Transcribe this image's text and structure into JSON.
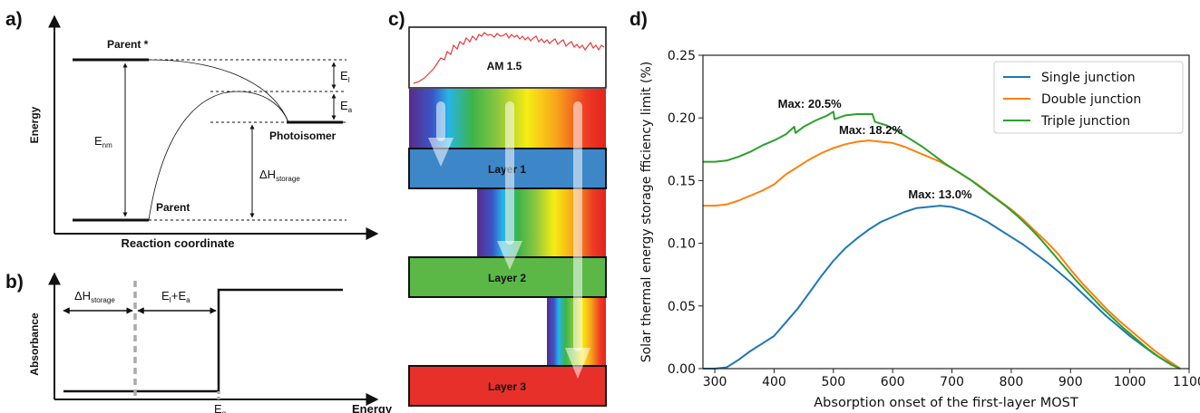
{
  "panel_a": {
    "letter": "a)",
    "y_axis_label": "Energy",
    "x_axis_label": "Reaction coordinate",
    "parent_star_label": "Parent *",
    "parent_label": "Parent",
    "photoisomer_label": "Photoisomer",
    "e_nm_label": "E",
    "e_nm_sub": "nm",
    "e_i_label": "E",
    "e_i_sub": "I",
    "e_a_label": "E",
    "e_a_sub": "a",
    "dh_label": "ΔH",
    "dh_sub": "storage"
  },
  "panel_b": {
    "letter": "b)",
    "y_axis_label": "Absorbance",
    "x_axis_label": "Energy",
    "dh_label": "ΔH",
    "dh_sub": "storage",
    "eiea_label": "E",
    "eiea_sub1": "I",
    "eiea_mid": "+E",
    "eiea_sub2": "a",
    "eg_label": "E",
    "eg_sub": "g"
  },
  "panel_c": {
    "letter": "c)",
    "spectrum_label": "AM 1.5",
    "layers": [
      "Layer 1",
      "Layer 2",
      "Layer 3"
    ],
    "layer_colors": [
      "#3d87c9",
      "#5bb847",
      "#e8302a"
    ]
  },
  "panel_d": {
    "letter": "d)",
    "chart_data": {
      "type": "line",
      "xlabel": "Absorption onset of the first-layer MOST",
      "ylabel": "Solar thermal energy storage fficiency limit (%)",
      "xlim": [
        280,
        1100
      ],
      "ylim": [
        0,
        0.25
      ],
      "xticks": [
        300,
        400,
        500,
        600,
        700,
        800,
        900,
        1000,
        1100
      ],
      "yticks": [
        0.0,
        0.05,
        0.1,
        0.15,
        0.2,
        0.25
      ],
      "legend": "top-right",
      "series": [
        {
          "name": "Single junction",
          "color": "#1f77b4",
          "x": [
            280,
            300,
            320,
            340,
            360,
            380,
            400,
            420,
            440,
            460,
            480,
            500,
            520,
            540,
            560,
            580,
            600,
            620,
            640,
            660,
            680,
            700,
            720,
            740,
            760,
            780,
            800,
            820,
            840,
            860,
            880,
            900,
            920,
            940,
            960,
            980,
            1000,
            1020,
            1040,
            1060,
            1085
          ],
          "y": [
            0.0,
            0.0,
            0.001,
            0.007,
            0.014,
            0.02,
            0.026,
            0.037,
            0.048,
            0.061,
            0.074,
            0.086,
            0.096,
            0.104,
            0.111,
            0.117,
            0.121,
            0.125,
            0.128,
            0.129,
            0.13,
            0.129,
            0.126,
            0.122,
            0.117,
            0.111,
            0.105,
            0.099,
            0.092,
            0.085,
            0.077,
            0.069,
            0.06,
            0.051,
            0.042,
            0.034,
            0.026,
            0.019,
            0.012,
            0.006,
            0.0
          ]
        },
        {
          "name": "Double junction",
          "color": "#ff7f0e",
          "x": [
            280,
            300,
            320,
            340,
            360,
            380,
            400,
            420,
            440,
            460,
            480,
            500,
            520,
            540,
            560,
            580,
            600,
            620,
            640,
            660,
            680,
            700,
            720,
            740,
            760,
            780,
            800,
            820,
            840,
            860,
            880,
            900,
            920,
            940,
            960,
            980,
            1000,
            1020,
            1040,
            1060,
            1085
          ],
          "y": [
            0.13,
            0.13,
            0.131,
            0.134,
            0.138,
            0.142,
            0.147,
            0.155,
            0.161,
            0.167,
            0.172,
            0.176,
            0.179,
            0.181,
            0.182,
            0.181,
            0.18,
            0.177,
            0.173,
            0.169,
            0.165,
            0.16,
            0.154,
            0.148,
            0.141,
            0.134,
            0.127,
            0.119,
            0.11,
            0.101,
            0.091,
            0.079,
            0.068,
            0.058,
            0.048,
            0.039,
            0.031,
            0.023,
            0.015,
            0.008,
            0.0
          ]
        },
        {
          "name": "Triple junction",
          "color": "#2ca02c",
          "x": [
            280,
            300,
            320,
            340,
            360,
            380,
            400,
            420,
            434,
            436,
            450,
            470,
            490,
            500,
            502,
            520,
            540,
            560,
            566,
            570,
            590,
            610,
            630,
            650,
            670,
            690,
            710,
            730,
            750,
            770,
            790,
            810,
            830,
            850,
            870,
            890,
            910,
            930,
            950,
            970,
            990,
            1010,
            1030,
            1050,
            1070,
            1085
          ],
          "y": [
            0.165,
            0.165,
            0.166,
            0.169,
            0.173,
            0.178,
            0.182,
            0.187,
            0.193,
            0.188,
            0.193,
            0.198,
            0.202,
            0.205,
            0.199,
            0.202,
            0.203,
            0.203,
            0.203,
            0.197,
            0.194,
            0.189,
            0.183,
            0.177,
            0.17,
            0.163,
            0.157,
            0.151,
            0.144,
            0.137,
            0.13,
            0.122,
            0.113,
            0.103,
            0.092,
            0.081,
            0.07,
            0.06,
            0.05,
            0.041,
            0.032,
            0.024,
            0.016,
            0.009,
            0.003,
            0.0
          ]
        }
      ],
      "annotations": [
        {
          "text": "Max: 20.5%",
          "x": 460,
          "y": 0.208
        },
        {
          "text": "Max: 18.2%",
          "x": 563,
          "y": 0.187
        },
        {
          "text": "Max: 13.0%",
          "x": 680,
          "y": 0.136
        }
      ]
    }
  }
}
